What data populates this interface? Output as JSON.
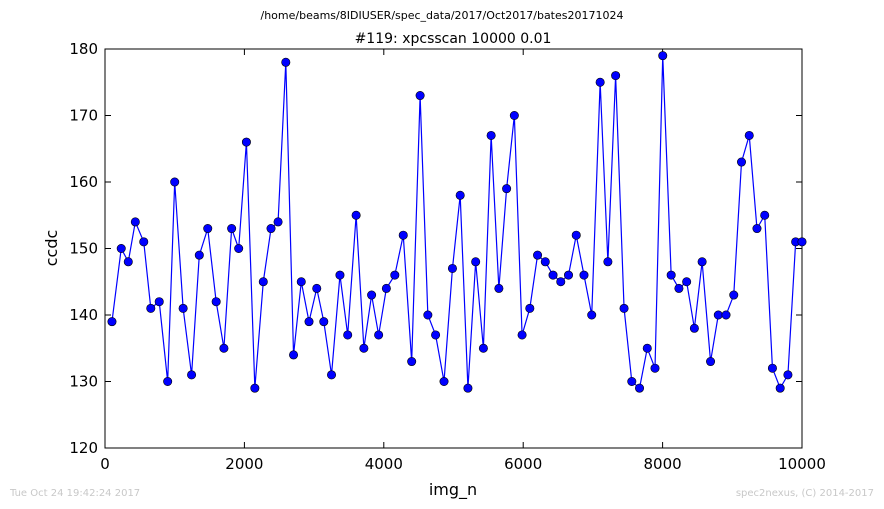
{
  "page": {
    "suptitle": "/home/beams/8IDIUSER/spec_data/2017/Oct2017/bates20171024",
    "footer_left": "Tue Oct 24 19:42:24 2017",
    "footer_right": "spec2nexus, (C) 2014-2017"
  },
  "chart_data": {
    "type": "line",
    "title": "#119: xpcsscan 10000 0.01",
    "xlabel": "img_n",
    "ylabel": "ccdc",
    "xlim": [
      0,
      10000
    ],
    "ylim": [
      120,
      180
    ],
    "xticks": [
      0,
      2000,
      4000,
      6000,
      8000,
      10000
    ],
    "yticks": [
      120,
      130,
      140,
      150,
      160,
      170,
      180
    ],
    "grid": false,
    "legend": "none",
    "color": "#0000ff",
    "marker": "circle",
    "series": [
      {
        "x": [
          100,
          233,
          334,
          435,
          556,
          657,
          778,
          899,
          1000,
          1121,
          1242,
          1353,
          1474,
          1595,
          1706,
          1817,
          1918,
          2029,
          2150,
          2271,
          2382,
          2483,
          2594,
          2705,
          2816,
          2927,
          3038,
          3139,
          3250,
          3371,
          3482,
          3603,
          3714,
          3825,
          3926,
          4037,
          4158,
          4279,
          4400,
          4521,
          4632,
          4743,
          4864,
          4985,
          5096,
          5207,
          5318,
          5429,
          5540,
          5651,
          5762,
          5873,
          5984,
          6095,
          6206,
          6317,
          6428,
          6539,
          6650,
          6761,
          6872,
          6983,
          7104,
          7215,
          7326,
          7447,
          7558,
          7669,
          7780,
          7891,
          8002,
          8123,
          8234,
          8345,
          8456,
          8567,
          8688,
          8799,
          8910,
          9021,
          9132,
          9243,
          9354,
          9465,
          9576,
          9687,
          9798,
          9909,
          10000
        ],
        "y": [
          139,
          150,
          148,
          154,
          151,
          141,
          142,
          130,
          160,
          141,
          131,
          149,
          153,
          142,
          135,
          153,
          150,
          166,
          129,
          145,
          153,
          154,
          178,
          134,
          145,
          139,
          144,
          139,
          131,
          146,
          137,
          155,
          135,
          143,
          137,
          144,
          146,
          152,
          133,
          173,
          140,
          137,
          130,
          147,
          158,
          129,
          148,
          135,
          167,
          144,
          159,
          170,
          137,
          141,
          149,
          148,
          146,
          145,
          146,
          152,
          146,
          140,
          175,
          148,
          176,
          141,
          130,
          129,
          135,
          132,
          179,
          146,
          144,
          145,
          138,
          148,
          133,
          140,
          140,
          143,
          163,
          167,
          153,
          155,
          132,
          129,
          131,
          151,
          151
        ]
      }
    ]
  }
}
